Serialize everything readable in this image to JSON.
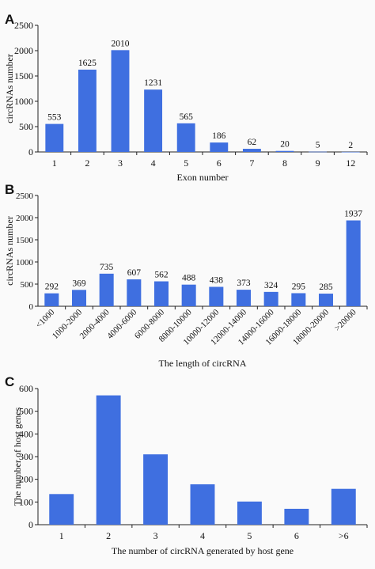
{
  "chart_data": [
    {
      "panel": "A",
      "type": "bar",
      "xlabel": "Exon number",
      "ylabel": "circRNAs number",
      "ylim": [
        0,
        2500
      ],
      "yticks": [
        0,
        500,
        1000,
        1500,
        2000,
        2500
      ],
      "categories": [
        "1",
        "2",
        "3",
        "4",
        "5",
        "6",
        "7",
        "8",
        "9",
        "12"
      ],
      "values": [
        553,
        1625,
        2010,
        1231,
        565,
        186,
        62,
        20,
        5,
        2
      ],
      "data_labels": [
        "553",
        "1625",
        "2010",
        "1231",
        "565",
        "186",
        "62",
        "20",
        "5",
        "2"
      ],
      "bar_color": "#3f6fe0",
      "grid": false
    },
    {
      "panel": "B",
      "type": "bar",
      "xlabel": "The length of circRNA",
      "ylabel": "circRNAs number",
      "ylim": [
        0,
        2500
      ],
      "yticks": [
        0,
        500,
        1000,
        1500,
        2000,
        2500
      ],
      "categories": [
        "<1000",
        "1000-2000",
        "2000-4000",
        "4000-6000",
        "6000-8000",
        "8000-10000",
        "10000-12000",
        "12000-14000",
        "14000-16000",
        "16000-18000",
        "18000-20000",
        ">20000"
      ],
      "values": [
        292,
        369,
        735,
        607,
        562,
        488,
        438,
        373,
        324,
        295,
        285,
        1937
      ],
      "data_labels": [
        "292",
        "369",
        "735",
        "607",
        "562",
        "488",
        "438",
        "373",
        "324",
        "295",
        "285",
        "1937"
      ],
      "bar_color": "#3f6fe0",
      "grid": false
    },
    {
      "panel": "C",
      "type": "bar",
      "xlabel": "The number of circRNA generated by host gene",
      "ylabel": "The number of host genes",
      "ylim": [
        0,
        600
      ],
      "yticks": [
        0,
        100,
        200,
        300,
        400,
        500,
        600
      ],
      "categories": [
        "1",
        "2",
        "3",
        "4",
        "5",
        "6",
        ">6"
      ],
      "values": [
        135,
        570,
        310,
        178,
        102,
        70,
        158
      ],
      "bar_color": "#3f6fe0",
      "grid": false
    }
  ]
}
